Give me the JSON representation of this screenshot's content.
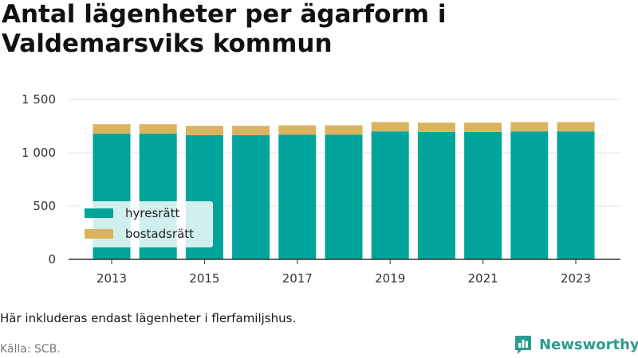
{
  "title": "Antal lägenheter per ägarform i Valdemarsviks kommun",
  "note": "Här inkluderas endast lägenheter i flerfamiljshus.",
  "source": "Källa: SCB.",
  "brand": {
    "name": "Newsworthy",
    "icon": "bar-chart-logo-icon",
    "color": "#2a9d8f"
  },
  "chart_data": {
    "type": "bar",
    "stacked": true,
    "categories": [
      "2013",
      "2014",
      "2015",
      "2016",
      "2017",
      "2018",
      "2019",
      "2020",
      "2021",
      "2022",
      "2023"
    ],
    "series": [
      {
        "name": "hyresrätt",
        "color": "#00a49a",
        "values": [
          1180,
          1180,
          1165,
          1165,
          1170,
          1170,
          1200,
          1195,
          1195,
          1200,
          1200
        ]
      },
      {
        "name": "bostadsrätt",
        "color": "#dbb35f",
        "values": [
          95,
          95,
          95,
          95,
          95,
          95,
          95,
          95,
          95,
          95,
          95
        ]
      }
    ],
    "ylim": [
      0,
      1500
    ],
    "yticks": [
      0,
      500,
      1000,
      1500
    ],
    "ytick_labels": [
      "0",
      "500",
      "1 000",
      "1 500"
    ],
    "xtick_labels": [
      "2013",
      "2015",
      "2017",
      "2019",
      "2021",
      "2023"
    ],
    "legend_position": "bottom-left inside plot",
    "grid": true
  }
}
